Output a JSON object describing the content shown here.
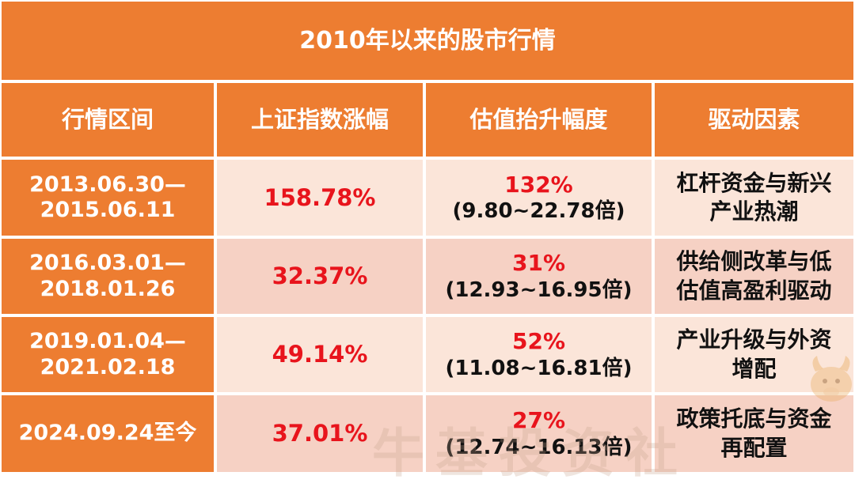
{
  "title": "2010年以来的股市行情",
  "headers": [
    "行情区间",
    "上证指数涨幅",
    "估值抬升幅度",
    "驱动因素"
  ],
  "rows": [
    {
      "period_line1": "2013.06.30—",
      "period_line2": "2015.06.11",
      "index_gain": "158.78%",
      "valuation_pct": "132%",
      "valuation_range": "(9.80~22.78倍)",
      "driver_line1": "杠杆资金与新兴",
      "driver_line2": "产业热潮"
    },
    {
      "period_line1": "2016.03.01—",
      "period_line2": "2018.01.26",
      "index_gain": "32.37%",
      "valuation_pct": "31%",
      "valuation_range": "(12.93~16.95倍)",
      "driver_line1": "供给侧改革与低",
      "driver_line2": "估值高盈利驱动"
    },
    {
      "period_line1": "2019.01.04—",
      "period_line2": "2021.02.18",
      "index_gain": "49.14%",
      "valuation_pct": "52%",
      "valuation_range": "(11.08~16.81倍)",
      "driver_line1": "产业升级与外资",
      "driver_line2": "增配"
    },
    {
      "period_line1": "2024.09.24至今",
      "period_line2": "",
      "index_gain": "37.01%",
      "valuation_pct": "27%",
      "valuation_range": "(12.74~16.13倍)",
      "driver_line1": "政策托底与资金",
      "driver_line2": "再配置"
    }
  ],
  "watermark": "牛基投资社",
  "colors": {
    "header_orange": "#ED7D31",
    "row_light": "#FBE5D9",
    "row_dark": "#F6D1C4",
    "highlight_red": "#E8141C"
  }
}
